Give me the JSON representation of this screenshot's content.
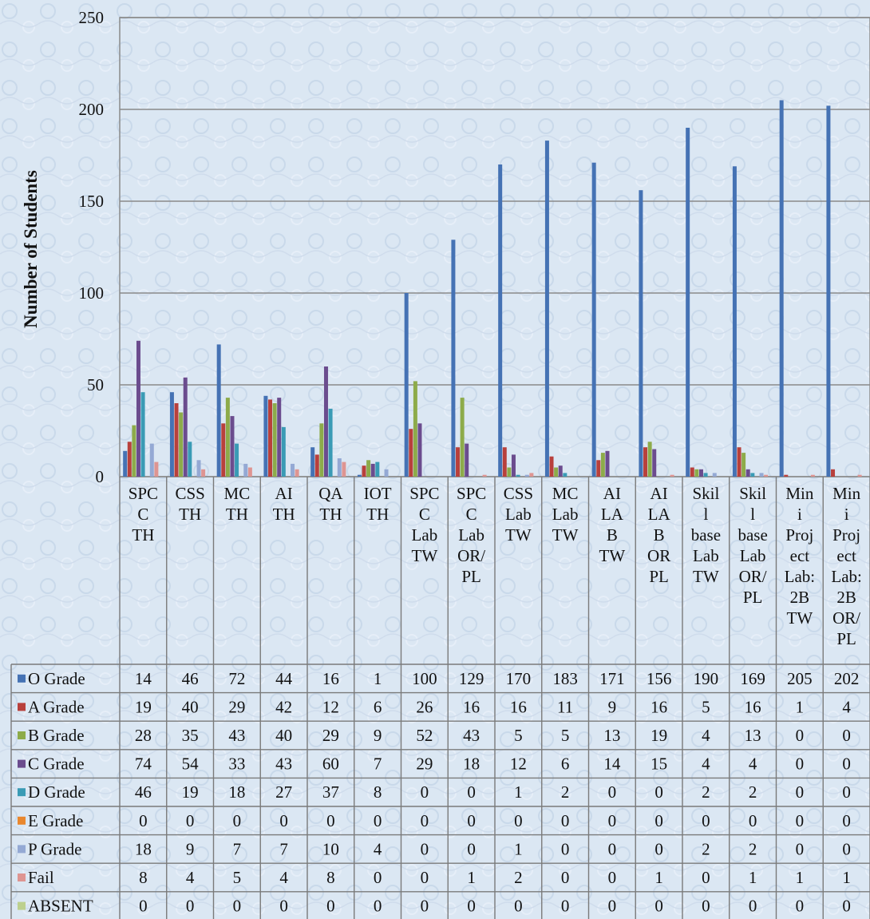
{
  "chart_data": {
    "type": "bar",
    "ylabel": "Number of Students",
    "ylim": [
      0,
      250
    ],
    "yticks": [
      0,
      50,
      100,
      150,
      200,
      250
    ],
    "grid": true,
    "legend_placement": "table-left",
    "categories": [
      "SPC C TH",
      "CSS TH",
      "MC TH",
      "AI TH",
      "QA TH",
      "IOT TH",
      "SPC C Lab TW",
      "SPC C Lab OR/ PL",
      "CSS Lab TW",
      "MC Lab TW",
      "AI LA B TW",
      "AI LA B OR PL",
      "Skil l base Lab TW",
      "Skil l base Lab OR/ PL",
      "Min i Proj ect Lab: 2B TW",
      "Min i Proj ect Lab: 2B OR/ PL"
    ],
    "category_lines": [
      [
        "SPC",
        "C",
        "TH"
      ],
      [
        "CSS",
        "TH"
      ],
      [
        "MC",
        "TH"
      ],
      [
        "AI",
        "TH"
      ],
      [
        "QA",
        "TH"
      ],
      [
        "IOT",
        "TH"
      ],
      [
        "SPC",
        "C",
        "Lab",
        "TW"
      ],
      [
        "SPC",
        "C",
        "Lab",
        "OR/",
        "PL"
      ],
      [
        "CSS",
        "Lab",
        "TW"
      ],
      [
        "MC",
        "Lab",
        "TW"
      ],
      [
        "AI",
        "LA",
        "B",
        "TW"
      ],
      [
        "AI",
        "LA",
        "B",
        "OR",
        "PL"
      ],
      [
        "Skil",
        "l",
        "base",
        "Lab",
        "TW"
      ],
      [
        "Skil",
        "l",
        "base",
        "Lab",
        "OR/",
        "PL"
      ],
      [
        "Min",
        "i",
        "Proj",
        "ect",
        "Lab:",
        "2B",
        "TW"
      ],
      [
        "Min",
        "i",
        "Proj",
        "ect",
        "Lab:",
        "2B",
        "OR/",
        "PL"
      ]
    ],
    "series": [
      {
        "name": "O Grade",
        "color": "#4572b4",
        "values": [
          14,
          46,
          72,
          44,
          16,
          1,
          100,
          129,
          170,
          183,
          171,
          156,
          190,
          169,
          205,
          202
        ]
      },
      {
        "name": "A Grade",
        "color": "#b8403c",
        "values": [
          19,
          40,
          29,
          42,
          12,
          6,
          26,
          16,
          16,
          11,
          9,
          16,
          5,
          16,
          1,
          4
        ]
      },
      {
        "name": "B Grade",
        "color": "#8dab4a",
        "values": [
          28,
          35,
          43,
          40,
          29,
          9,
          52,
          43,
          5,
          5,
          13,
          19,
          4,
          13,
          0,
          0
        ]
      },
      {
        "name": "C Grade",
        "color": "#6b4c8e",
        "values": [
          74,
          54,
          33,
          43,
          60,
          7,
          29,
          18,
          12,
          6,
          14,
          15,
          4,
          4,
          0,
          0
        ]
      },
      {
        "name": "D Grade",
        "color": "#3a9bb5",
        "values": [
          46,
          19,
          18,
          27,
          37,
          8,
          0,
          0,
          1,
          2,
          0,
          0,
          2,
          2,
          0,
          0
        ]
      },
      {
        "name": "E Grade",
        "color": "#e9872e",
        "values": [
          0,
          0,
          0,
          0,
          0,
          0,
          0,
          0,
          0,
          0,
          0,
          0,
          0,
          0,
          0,
          0
        ]
      },
      {
        "name": "P Grade",
        "color": "#94a9d4",
        "values": [
          18,
          9,
          7,
          7,
          10,
          4,
          0,
          0,
          1,
          0,
          0,
          0,
          2,
          2,
          0,
          0
        ]
      },
      {
        "name": "Fail",
        "color": "#de9592",
        "values": [
          8,
          4,
          5,
          4,
          8,
          0,
          0,
          1,
          2,
          0,
          0,
          1,
          0,
          1,
          1,
          1
        ]
      },
      {
        "name": "ABSENT",
        "color": "#bdd08e",
        "values": [
          0,
          0,
          0,
          0,
          0,
          0,
          0,
          0,
          0,
          0,
          0,
          0,
          0,
          0,
          0,
          0
        ]
      }
    ]
  }
}
